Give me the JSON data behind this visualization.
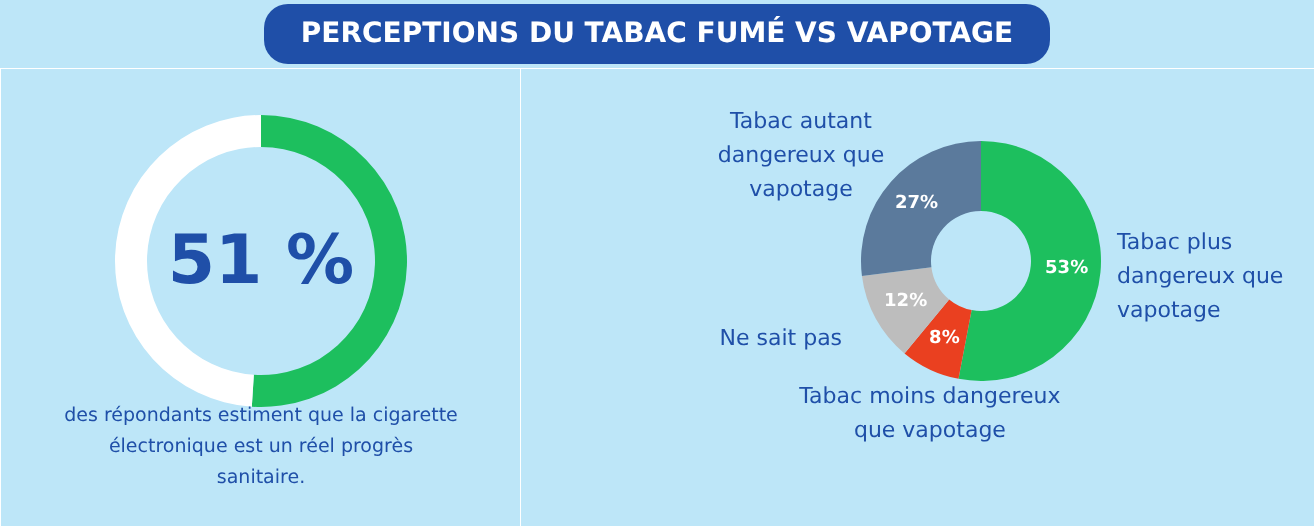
{
  "chart_data": [
    {
      "type": "donut",
      "title": "PERCEPTIONS DU TABAC FUMÉ VS VAPOTAGE",
      "categories": [
        null,
        null
      ],
      "values": [
        51,
        49
      ],
      "colors": [
        "#1dbf5e",
        "#ffffff"
      ],
      "annotations": [
        "51 %",
        "des répondants estiment que la cigarette électronique est un réel progrès sanitaire."
      ]
    },
    {
      "type": "donut",
      "categories": [
        "Tabac plus dangereux que vapotage",
        "Tabac moins dangereux que vapotage",
        "Ne sait pas",
        "Tabac autant dangereux que vapotage"
      ],
      "values": [
        53,
        8,
        12,
        27
      ],
      "colors": [
        "#1dbf5e",
        "#ea4020",
        "#bdbdbd",
        "#5b7a9c"
      ],
      "value_labels": [
        "53%",
        "8%",
        "12%",
        "27%"
      ]
    }
  ]
}
